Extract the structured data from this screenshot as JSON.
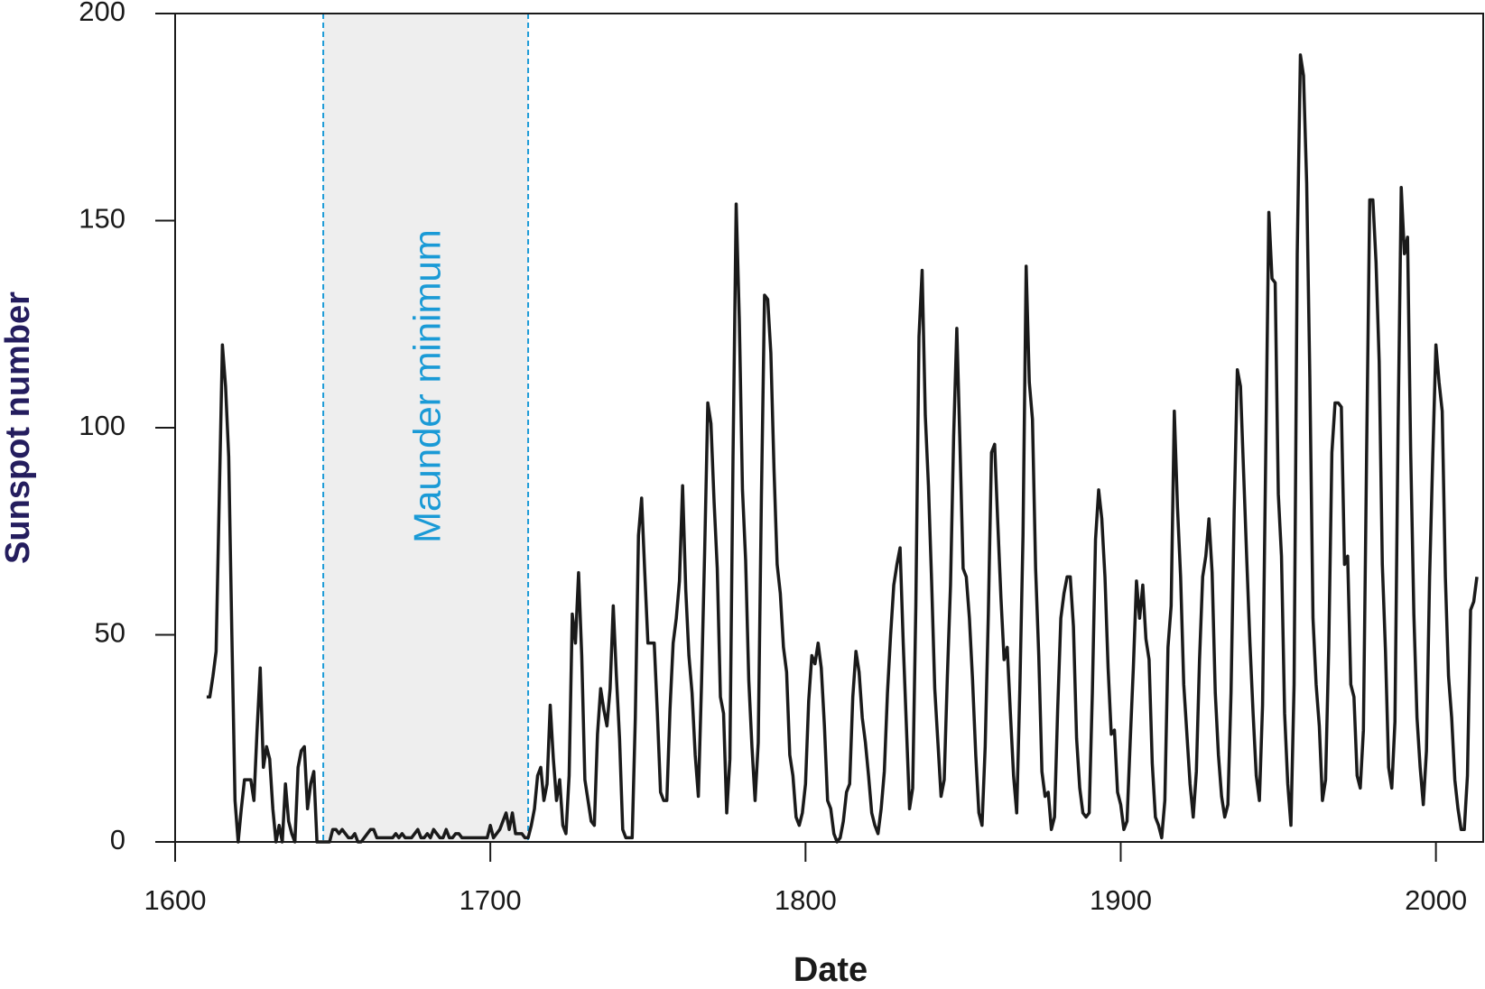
{
  "chart_data": {
    "type": "line",
    "xlabel": "Date",
    "ylabel": "Sunspot number",
    "annotation": {
      "text": "Maunder minimum",
      "span": [
        1647,
        1712
      ],
      "color": "#1a9ad6",
      "fill": "#eeeeee"
    },
    "color": "#1a1a1a",
    "xlim": [
      1600,
      2015
    ],
    "xticks": [
      1600,
      1700,
      1800,
      1900,
      2000
    ],
    "ylim": [
      0,
      200
    ],
    "yticks": [
      0,
      50,
      100,
      150,
      200
    ],
    "grid": false,
    "x": [
      1610,
      1611,
      1612,
      1613,
      1614,
      1615,
      1616,
      1617,
      1618,
      1619,
      1620,
      1621,
      1622,
      1623,
      1624,
      1625,
      1626,
      1627,
      1628,
      1629,
      1630,
      1631,
      1632,
      1633,
      1634,
      1635,
      1636,
      1637,
      1638,
      1639,
      1640,
      1641,
      1642,
      1643,
      1644,
      1645,
      1646,
      1647,
      1648,
      1649,
      1650,
      1651,
      1652,
      1653,
      1654,
      1655,
      1656,
      1657,
      1658,
      1659,
      1660,
      1661,
      1662,
      1663,
      1664,
      1665,
      1666,
      1667,
      1668,
      1669,
      1670,
      1671,
      1672,
      1673,
      1674,
      1675,
      1676,
      1677,
      1678,
      1679,
      1680,
      1681,
      1682,
      1683,
      1684,
      1685,
      1686,
      1687,
      1688,
      1689,
      1690,
      1691,
      1692,
      1693,
      1694,
      1695,
      1696,
      1697,
      1698,
      1699,
      1700,
      1701,
      1702,
      1703,
      1704,
      1705,
      1706,
      1707,
      1708,
      1709,
      1710,
      1711,
      1712,
      1713,
      1714,
      1715,
      1716,
      1717,
      1718,
      1719,
      1720,
      1721,
      1722,
      1723,
      1724,
      1725,
      1726,
      1727,
      1728,
      1729,
      1730,
      1731,
      1732,
      1733,
      1734,
      1735,
      1736,
      1737,
      1738,
      1739,
      1740,
      1741,
      1742,
      1743,
      1744,
      1745,
      1746,
      1747,
      1748,
      1749,
      1750,
      1751,
      1752,
      1753,
      1754,
      1755,
      1756,
      1757,
      1758,
      1759,
      1760,
      1761,
      1762,
      1763,
      1764,
      1765,
      1766,
      1767,
      1768,
      1769,
      1770,
      1771,
      1772,
      1773,
      1774,
      1775,
      1776,
      1777,
      1778,
      1779,
      1780,
      1781,
      1782,
      1783,
      1784,
      1785,
      1786,
      1787,
      1788,
      1789,
      1790,
      1791,
      1792,
      1793,
      1794,
      1795,
      1796,
      1797,
      1798,
      1799,
      1800,
      1801,
      1802,
      1803,
      1804,
      1805,
      1806,
      1807,
      1808,
      1809,
      1810,
      1811,
      1812,
      1813,
      1814,
      1815,
      1816,
      1817,
      1818,
      1819,
      1820,
      1821,
      1822,
      1823,
      1824,
      1825,
      1826,
      1827,
      1828,
      1829,
      1830,
      1831,
      1832,
      1833,
      1834,
      1835,
      1836,
      1837,
      1838,
      1839,
      1840,
      1841,
      1842,
      1843,
      1844,
      1845,
      1846,
      1847,
      1848,
      1849,
      1850,
      1851,
      1852,
      1853,
      1854,
      1855,
      1856,
      1857,
      1858,
      1859,
      1860,
      1861,
      1862,
      1863,
      1864,
      1865,
      1866,
      1867,
      1868,
      1869,
      1870,
      1871,
      1872,
      1873,
      1874,
      1875,
      1876,
      1877,
      1878,
      1879,
      1880,
      1881,
      1882,
      1883,
      1884,
      1885,
      1886,
      1887,
      1888,
      1889,
      1890,
      1891,
      1892,
      1893,
      1894,
      1895,
      1896,
      1897,
      1898,
      1899,
      1900,
      1901,
      1902,
      1903,
      1904,
      1905,
      1906,
      1907,
      1908,
      1909,
      1910,
      1911,
      1912,
      1913,
      1914,
      1915,
      1916,
      1917,
      1918,
      1919,
      1920,
      1921,
      1922,
      1923,
      1924,
      1925,
      1926,
      1927,
      1928,
      1929,
      1930,
      1931,
      1932,
      1933,
      1934,
      1935,
      1936,
      1937,
      1938,
      1939,
      1940,
      1941,
      1942,
      1943,
      1944,
      1945,
      1946,
      1947,
      1948,
      1949,
      1950,
      1951,
      1952,
      1953,
      1954,
      1955,
      1956,
      1957,
      1958,
      1959,
      1960,
      1961,
      1962,
      1963,
      1964,
      1965,
      1966,
      1967,
      1968,
      1969,
      1970,
      1971,
      1972,
      1973,
      1974,
      1975,
      1976,
      1977,
      1978,
      1979,
      1980,
      1981,
      1982,
      1983,
      1984,
      1985,
      1986,
      1987,
      1988,
      1989,
      1990,
      1991,
      1992,
      1993,
      1994,
      1995,
      1996,
      1997,
      1998,
      1999,
      2000,
      2001,
      2002,
      2003,
      2004,
      2005,
      2006,
      2007,
      2008,
      2009,
      2010,
      2011,
      2012,
      2013
    ],
    "values": [
      35,
      35,
      40,
      46,
      83,
      120,
      110,
      93,
      50,
      10,
      0,
      8,
      15,
      15,
      15,
      10,
      27,
      42,
      18,
      23,
      20,
      8,
      0,
      4,
      0,
      14,
      5,
      2,
      0,
      18,
      22,
      23,
      8,
      14,
      17,
      0,
      0,
      0,
      0,
      0,
      3,
      3,
      2,
      3,
      2,
      1,
      1,
      2,
      0,
      0,
      1,
      2,
      3,
      3,
      1,
      1,
      1,
      1,
      1,
      1,
      2,
      1,
      2,
      1,
      1,
      1,
      2,
      3,
      1,
      1,
      2,
      1,
      3,
      2,
      1,
      1,
      3,
      1,
      1,
      2,
      2,
      1,
      1,
      1,
      1,
      1,
      1,
      1,
      1,
      1,
      4,
      1,
      2,
      3,
      5,
      7,
      3,
      7,
      2,
      2,
      2,
      1,
      1,
      4,
      8,
      16,
      18,
      10,
      14,
      33,
      20,
      10,
      15,
      4,
      2,
      16,
      55,
      48,
      65,
      45,
      15,
      10,
      5,
      4,
      26,
      37,
      32,
      28,
      37,
      57,
      40,
      25,
      3,
      1,
      1,
      1,
      30,
      74,
      83,
      65,
      48,
      48,
      48,
      31,
      12,
      10,
      10,
      32,
      48,
      54,
      63,
      86,
      61,
      45,
      36,
      21,
      11,
      38,
      70,
      106,
      101,
      82,
      66,
      35,
      31,
      7,
      20,
      93,
      154,
      126,
      85,
      68,
      39,
      23,
      10,
      24,
      83,
      132,
      131,
      118,
      90,
      67,
      60,
      47,
      41,
      21,
      16,
      6,
      4,
      7,
      14,
      34,
      45,
      43,
      48,
      42,
      28,
      10,
      8,
      2,
      0,
      1,
      5,
      12,
      14,
      35,
      46,
      41,
      30,
      24,
      16,
      7,
      4,
      2,
      8,
      17,
      36,
      50,
      62,
      67,
      71,
      48,
      28,
      8,
      13,
      57,
      122,
      138,
      103,
      86,
      63,
      37,
      24,
      11,
      15,
      40,
      62,
      98,
      124,
      96,
      66,
      64,
      54,
      39,
      21,
      7,
      4,
      23,
      55,
      94,
      96,
      77,
      59,
      44,
      47,
      31,
      16,
      7,
      37,
      74,
      139,
      111,
      102,
      66,
      45,
      17,
      11,
      12,
      3,
      6,
      32,
      54,
      60,
      64,
      64,
      52,
      25,
      13,
      7,
      6,
      7,
      36,
      73,
      85,
      78,
      64,
      42,
      26,
      27,
      12,
      9,
      3,
      5,
      24,
      42,
      63,
      54,
      62,
      49,
      44,
      19,
      6,
      4,
      1,
      10,
      47,
      57,
      104,
      81,
      64,
      38,
      26,
      14,
      6,
      17,
      44,
      64,
      69,
      78,
      65,
      36,
      21,
      11,
      6,
      9,
      36,
      80,
      114,
      110,
      89,
      68,
      48,
      31,
      16,
      10,
      33,
      93,
      152,
      136,
      135,
      84,
      69,
      31,
      14,
      4,
      38,
      142,
      190,
      185,
      159,
      112,
      54,
      38,
      28,
      10,
      15,
      47,
      94,
      106,
      106,
      105,
      67,
      69,
      38,
      35,
      16,
      13,
      27,
      93,
      155,
      155,
      140,
      116,
      67,
      46,
      18,
      13,
      29,
      100,
      158,
      142,
      146,
      94,
      55,
      30,
      18,
      9,
      22,
      64,
      93,
      120,
      111,
      104,
      64,
      40,
      30,
      15,
      8,
      3,
      3,
      16,
      56,
      58,
      64
    ]
  }
}
